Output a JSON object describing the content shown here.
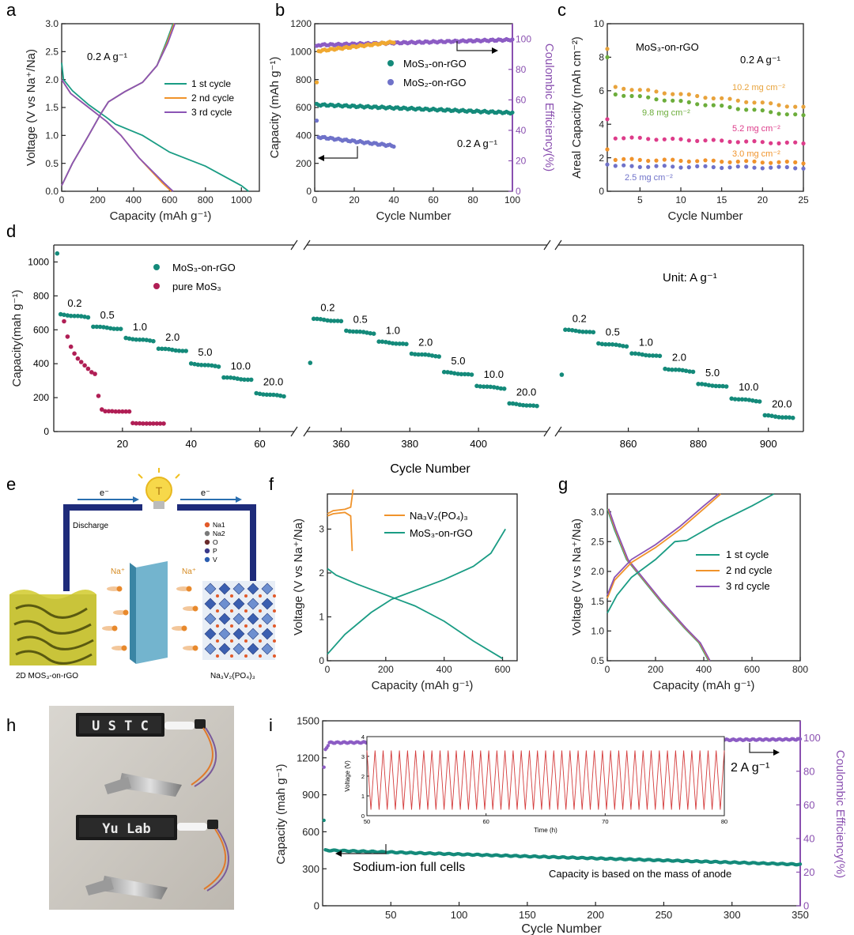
{
  "panel_letters": [
    "a",
    "b",
    "c",
    "d",
    "e",
    "f",
    "g",
    "h",
    "i"
  ],
  "colors": {
    "c1": "#1a9c84",
    "c2": "#f0932b",
    "c3": "#8b54b5",
    "teal": "#148a7a",
    "purple": "#8c5cc4",
    "blue": "#6f72c9",
    "crimson": "#b01e55",
    "orange": "#e8a33c",
    "axis_purple": "#8a50b0",
    "red": "#d43b3b",
    "green": "#6cad3b",
    "magenta": "#dd3c8a"
  },
  "chart_data": [
    {
      "panel": "a",
      "type": "line",
      "xlabel": "Capacity (mAh g⁻¹)",
      "ylabel": "Voltage (V vs Na⁺/Na)",
      "xlim": [
        0,
        1100
      ],
      "ylim": [
        0,
        3.0
      ],
      "xticks": [
        0,
        200,
        400,
        600,
        800,
        1000
      ],
      "yticks": [
        0,
        0.5,
        1.0,
        1.5,
        2.0,
        2.5,
        3.0
      ],
      "annotation": "0.2 A g⁻¹",
      "series": [
        {
          "name": "1 st cycle",
          "color": "#1a9c84",
          "discharge": [
            [
              0,
              2.3
            ],
            [
              10,
              2.0
            ],
            [
              60,
              1.8
            ],
            [
              150,
              1.55
            ],
            [
              250,
              1.32
            ],
            [
              300,
              1.2
            ],
            [
              450,
              1.0
            ],
            [
              600,
              0.7
            ],
            [
              800,
              0.45
            ],
            [
              1000,
              0.1
            ],
            [
              1040,
              0.0
            ]
          ],
          "charge": [
            [
              0,
              0.1
            ],
            [
              60,
              0.5
            ],
            [
              150,
              1.0
            ],
            [
              220,
              1.4
            ],
            [
              260,
              1.6
            ],
            [
              350,
              1.78
            ],
            [
              450,
              1.95
            ],
            [
              530,
              2.25
            ],
            [
              580,
              2.65
            ],
            [
              620,
              3.0
            ]
          ]
        },
        {
          "name": "2 nd cycle",
          "color": "#f0932b",
          "discharge": [
            [
              0,
              2.0
            ],
            [
              50,
              1.75
            ],
            [
              150,
              1.5
            ],
            [
              250,
              1.25
            ],
            [
              330,
              1.0
            ],
            [
              430,
              0.6
            ],
            [
              560,
              0.15
            ],
            [
              610,
              0.0
            ]
          ],
          "charge": [
            [
              0,
              0.1
            ],
            [
              60,
              0.5
            ],
            [
              150,
              1.0
            ],
            [
              220,
              1.4
            ],
            [
              260,
              1.6
            ],
            [
              350,
              1.78
            ],
            [
              450,
              1.95
            ],
            [
              530,
              2.25
            ],
            [
              585,
              2.65
            ],
            [
              625,
              3.0
            ]
          ]
        },
        {
          "name": "3 rd cycle",
          "color": "#8b54b5",
          "discharge": [
            [
              0,
              2.0
            ],
            [
              50,
              1.75
            ],
            [
              150,
              1.5
            ],
            [
              250,
              1.25
            ],
            [
              330,
              1.0
            ],
            [
              430,
              0.6
            ],
            [
              570,
              0.15
            ],
            [
              620,
              0.0
            ]
          ],
          "charge": [
            [
              0,
              0.1
            ],
            [
              60,
              0.5
            ],
            [
              150,
              1.0
            ],
            [
              220,
              1.4
            ],
            [
              260,
              1.6
            ],
            [
              350,
              1.78
            ],
            [
              450,
              1.95
            ],
            [
              530,
              2.25
            ],
            [
              590,
              2.65
            ],
            [
              630,
              3.0
            ]
          ]
        }
      ]
    },
    {
      "panel": "b",
      "type": "scatter",
      "xlabel": "Cycle Number",
      "ylabel": "Capacity (mAh g⁻¹)",
      "y2label": "Coulombic Efficiency(%)",
      "xlim": [
        0,
        100
      ],
      "ylim": [
        0,
        1200
      ],
      "y2lim": [
        0,
        110
      ],
      "xticks": [
        0,
        20,
        40,
        60,
        80,
        100
      ],
      "yticks": [
        0,
        200,
        400,
        600,
        800,
        1000,
        1200
      ],
      "y2ticks": [
        0,
        20,
        40,
        60,
        80,
        100
      ],
      "annotation": "0.2 A g⁻¹",
      "series": [
        {
          "name": "MoS₃-on-rGO",
          "color": "#148a7a",
          "axis": "left",
          "cycles": [
            1,
            100
          ],
          "start": 620,
          "end": 562
        },
        {
          "name": "MoS₂-on-rGO",
          "color": "#6f72c9",
          "axis": "left",
          "cycles": [
            1,
            40
          ],
          "start": 390,
          "end": 325,
          "first": 500
        },
        {
          "name": "CE MoS₃-on-rGO",
          "color": "#8c5cc4",
          "axis": "right",
          "cycles": [
            1,
            100
          ],
          "start": 96,
          "end": 99.5,
          "first": 95
        },
        {
          "name": "CE MoS₂-on-rGO",
          "color": "#f0a830",
          "axis": "right",
          "cycles": [
            1,
            40
          ],
          "start": 92,
          "end": 98,
          "first": 71
        }
      ]
    },
    {
      "panel": "c",
      "type": "scatter",
      "xlabel": "Cycle Number",
      "ylabel": "Areal Capacity (mAh cm⁻²)",
      "title": "MoS₃-on-rGO",
      "annotation": "0.2 A g⁻¹",
      "xlim": [
        1,
        25
      ],
      "ylim": [
        0,
        10
      ],
      "xticks": [
        5,
        10,
        15,
        20,
        25
      ],
      "yticks": [
        0,
        2,
        4,
        6,
        8,
        10
      ],
      "series": [
        {
          "name": "10.2 mg cm⁻²",
          "color": "#e8a33c",
          "first": 8.5,
          "start": 6.2,
          "end": 5.0
        },
        {
          "name": "9.8 mg cm⁻²",
          "color": "#6cad3b",
          "first": 8.0,
          "start": 5.8,
          "end": 4.5
        },
        {
          "name": "5.2 mg cm⁻²",
          "color": "#dd3c8a",
          "first": 4.3,
          "start": 3.2,
          "end": 2.85
        },
        {
          "name": "3.0 mg cm⁻²",
          "color": "#f0932b",
          "first": 2.5,
          "start": 1.9,
          "end": 1.7
        },
        {
          "name": "2.5 mg cm⁻²",
          "color": "#6f72c9",
          "first": 1.6,
          "start": 1.5,
          "end": 1.4
        }
      ]
    },
    {
      "panel": "d",
      "type": "scatter",
      "xlabel": "Cycle Number",
      "ylabel": "Capacity(mah g⁻¹)",
      "annotation": "Unit: A g⁻¹",
      "ylim": [
        0,
        1100
      ],
      "yticks": [
        0,
        200,
        400,
        600,
        800,
        1000
      ],
      "segments": [
        {
          "xlim": [
            0,
            70
          ],
          "xticks": [
            20,
            40,
            60
          ]
        },
        {
          "xlim": [
            350,
            420
          ],
          "xticks": [
            360,
            380,
            400
          ]
        },
        {
          "xlim": [
            840,
            910
          ],
          "xticks": [
            860,
            880,
            900
          ]
        }
      ],
      "series": [
        {
          "name": "MoS₃-on-rGO",
          "color": "#148a7a"
        },
        {
          "name": "pure MoS₃",
          "color": "#b01e55"
        }
      ],
      "rate_steps": [
        {
          "rate": "0.2",
          "cap": [
            690,
            665,
            600
          ]
        },
        {
          "rate": "0.5",
          "cap": [
            620,
            595,
            520
          ]
        },
        {
          "rate": "1.0",
          "cap": [
            550,
            530,
            460
          ]
        },
        {
          "rate": "2.0",
          "cap": [
            490,
            460,
            370
          ]
        },
        {
          "rate": "5.0",
          "cap": [
            400,
            350,
            280
          ]
        },
        {
          "rate": "10.0",
          "cap": [
            320,
            270,
            195
          ]
        },
        {
          "rate": "20.0",
          "cap": [
            225,
            165,
            95
          ]
        }
      ],
      "pure_mos3": [
        [
          1,
          650
        ],
        [
          2,
          560
        ],
        [
          3,
          500
        ],
        [
          4,
          460
        ],
        [
          5,
          430
        ],
        [
          6,
          410
        ],
        [
          7,
          390
        ],
        [
          8,
          370
        ],
        [
          9,
          350
        ],
        [
          10,
          340
        ],
        [
          11,
          210
        ],
        [
          12,
          130
        ],
        [
          13,
          120
        ],
        [
          14,
          120
        ],
        [
          15,
          120
        ],
        [
          16,
          118
        ],
        [
          17,
          118
        ],
        [
          18,
          118
        ],
        [
          19,
          118
        ],
        [
          20,
          118
        ],
        [
          21,
          50
        ],
        [
          22,
          48
        ],
        [
          23,
          48
        ],
        [
          24,
          47
        ],
        [
          25,
          47
        ],
        [
          26,
          47
        ],
        [
          27,
          47
        ],
        [
          28,
          47
        ],
        [
          29,
          47
        ],
        [
          30,
          47
        ]
      ]
    },
    {
      "panel": "f",
      "type": "line",
      "xlabel": "Capacity (mAh g⁻¹)",
      "ylabel": "Voltage (V vs Na⁺/Na)",
      "xlim": [
        0,
        650
      ],
      "ylim": [
        0,
        3.8
      ],
      "xticks": [
        0,
        200,
        400,
        600
      ],
      "yticks": [
        0,
        1,
        2,
        3
      ],
      "series": [
        {
          "name": "Na₃V₂(PO₄)₃",
          "color": "#f0932b"
        },
        {
          "name": "MoS₃-on-rGO",
          "color": "#1a9c84"
        }
      ]
    },
    {
      "panel": "g",
      "type": "line",
      "xlabel": "Capacity (mAh g⁻¹)",
      "ylabel": "Voltage (V vs Na⁺/Na)",
      "xlim": [
        0,
        800
      ],
      "ylim": [
        0.5,
        3.3
      ],
      "xticks": [
        0,
        200,
        400,
        600,
        800
      ],
      "yticks": [
        0.5,
        1.0,
        1.5,
        2.0,
        2.5,
        3.0
      ],
      "series": [
        {
          "name": "1 st cycle",
          "color": "#1a9c84"
        },
        {
          "name": "2 nd cycle",
          "color": "#f0932b"
        },
        {
          "name": "3 rd cycle",
          "color": "#8b54b5"
        }
      ]
    },
    {
      "panel": "i",
      "type": "scatter",
      "xlabel": "Cycle Number",
      "ylabel": "Capacity (mah g⁻¹)",
      "y2label": "Coulombic Efficiency(%)",
      "xlim": [
        0,
        350
      ],
      "ylim": [
        0,
        1500
      ],
      "y2lim": [
        0,
        110
      ],
      "xticks": [
        50,
        100,
        150,
        200,
        250,
        300,
        350
      ],
      "yticks": [
        0,
        300,
        600,
        900,
        1200,
        1500
      ],
      "y2ticks": [
        0,
        20,
        40,
        60,
        80,
        100
      ],
      "annotation_rate": "2 A g⁻¹",
      "annotation_cells": "Sodium-ion full cells",
      "annotation_note": "Capacity is based on the mass of anode",
      "series": [
        {
          "name": "Capacity",
          "color": "#148a7a",
          "first": 690,
          "start": 450,
          "end": 335
        },
        {
          "name": "Coulombic efficiency",
          "color": "#8c5cc4",
          "first": 82,
          "start": 97,
          "end": 99
        }
      ],
      "inset": {
        "xlabel": "Time (h)",
        "ylabel": "Voltage (V)",
        "xlim": [
          50,
          80
        ],
        "ylim": [
          0,
          4
        ],
        "xticks": [
          50,
          60,
          70,
          80
        ],
        "yticks": [
          0,
          1,
          2,
          3,
          4
        ],
        "color": "#d43b3b",
        "vmin": 0.3,
        "vmax": 3.3,
        "cycles": 44
      }
    }
  ],
  "schematic_e": {
    "electron_left": "e⁻",
    "electron_right": "e⁻",
    "discharge": "Discharge",
    "na_left": "Na⁺",
    "na_right": "Na⁺",
    "legend": [
      "Na1",
      "Na2",
      "O",
      "P",
      "V"
    ],
    "legend_colors": [
      "#e25a2a",
      "#7a7a7a",
      "#6a2b2b",
      "#3a3a8a",
      "#2a5db0"
    ],
    "anode_label": "2D MOS₃-on-rGO",
    "cathode_label": "Na₃V₂(PO₄)₃"
  },
  "photo_h": {
    "display_top": "U S T C",
    "display_bottom": "Yu Lab"
  }
}
